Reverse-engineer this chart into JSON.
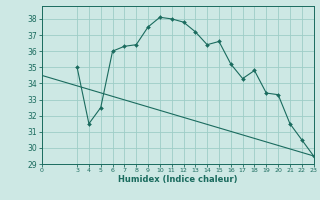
{
  "xlabel": "Humidex (Indice chaleur)",
  "background_color": "#cde8e4",
  "grid_color": "#9ecdc7",
  "line_color": "#1a6b5e",
  "xlim": [
    0,
    23
  ],
  "ylim": [
    29,
    38.8
  ],
  "yticks": [
    29,
    30,
    31,
    32,
    33,
    34,
    35,
    36,
    37,
    38
  ],
  "xticks": [
    0,
    3,
    4,
    5,
    6,
    7,
    8,
    9,
    10,
    11,
    12,
    13,
    14,
    15,
    16,
    17,
    18,
    19,
    20,
    21,
    22,
    23
  ],
  "curve_x": [
    3,
    4,
    5,
    6,
    7,
    8,
    9,
    10,
    11,
    12,
    13,
    14,
    15,
    16,
    17,
    18,
    19,
    20,
    21,
    22,
    23
  ],
  "curve_y": [
    35.0,
    31.5,
    32.5,
    36.0,
    36.3,
    36.4,
    37.5,
    38.1,
    38.0,
    37.8,
    37.2,
    36.4,
    36.6,
    35.2,
    34.3,
    34.8,
    33.4,
    33.3,
    31.5,
    30.5,
    29.5
  ],
  "line_x": [
    0,
    23
  ],
  "line_y": [
    34.5,
    29.5
  ]
}
